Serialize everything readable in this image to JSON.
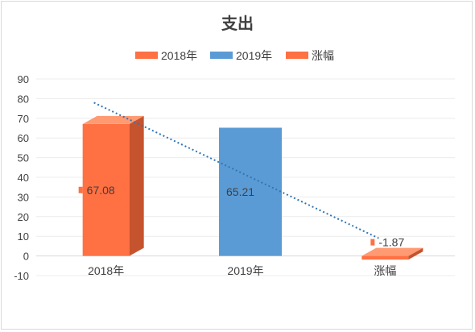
{
  "chart_data": {
    "type": "bar",
    "title": "支出",
    "categories": [
      "2018年",
      "2019年",
      "涨幅"
    ],
    "values": [
      67.08,
      65.21,
      -1.87
    ],
    "legend": [
      "2018年",
      "2019年",
      "涨幅"
    ],
    "legend_position": "top",
    "ylim": [
      -10,
      90
    ],
    "yticks": [
      "90",
      "80",
      "70",
      "60",
      "50",
      "40",
      "30",
      "20",
      "10",
      "0",
      "-10"
    ],
    "data_labels": [
      "67.08",
      "65.21",
      "-1.87"
    ],
    "grid": true,
    "trendline": "linear",
    "colors": {
      "2018年": "#ff7043",
      "2019年": "#5b9bd5",
      "涨幅": "#ff7043",
      "trendline": "#2e75b6"
    }
  }
}
